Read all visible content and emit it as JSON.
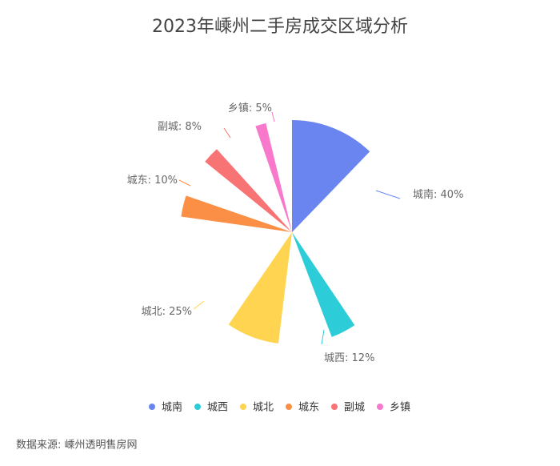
{
  "chart_data": {
    "type": "rose",
    "title": "2023年嵊州二手房成交区域分析",
    "categories": [
      "城南",
      "城西",
      "城北",
      "城东",
      "副城",
      "乡镇"
    ],
    "values": [
      40,
      12,
      25,
      10,
      8,
      5
    ],
    "value_labels": [
      "40%",
      "12%",
      "25%",
      "10%",
      "8%",
      "5%"
    ],
    "colors": [
      "#6a85f0",
      "#2ccdd8",
      "#fed451",
      "#fb8f46",
      "#f87373",
      "#f878cc"
    ],
    "source": "数据来源: 嵊州透明售房网"
  }
}
